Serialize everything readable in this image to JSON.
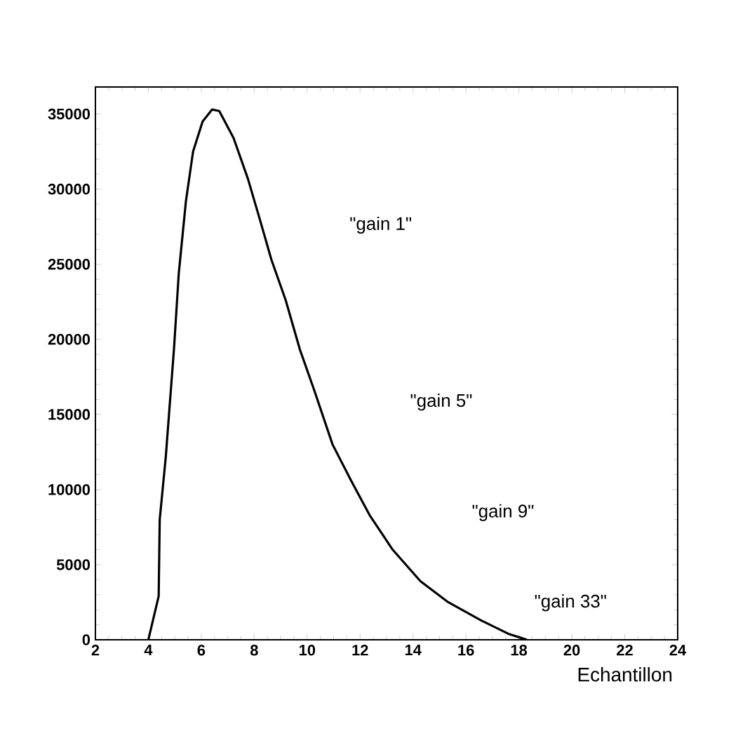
{
  "chart_data": {
    "type": "line",
    "xlabel": "Echantillon",
    "xlim": [
      2,
      24
    ],
    "xticks": [
      2,
      4,
      6,
      8,
      10,
      12,
      14,
      16,
      18,
      20,
      22,
      24
    ],
    "ylim": [
      0,
      36800
    ],
    "yticks": [
      0,
      5000,
      10000,
      15000,
      20000,
      25000,
      30000,
      35000
    ],
    "grid": false,
    "marker": "none",
    "line_style": "solid",
    "series": [
      {
        "color": "#000000",
        "x": [
          4.0,
          4.39,
          4.43,
          4.66,
          4.97,
          5.15,
          5.42,
          5.69,
          6.05,
          6.41,
          6.68,
          7.22,
          7.76,
          8.21,
          8.65,
          9.19,
          9.73,
          10.27,
          10.96,
          11.66,
          12.36,
          13.23,
          14.28,
          15.33,
          16.56,
          17.6,
          18.13,
          18.3
        ],
        "values": [
          0,
          2900,
          8000,
          12200,
          19400,
          24400,
          29200,
          32500,
          34500,
          35300,
          35200,
          33400,
          30700,
          28000,
          25300,
          22600,
          19300,
          16600,
          13000,
          10600,
          8300,
          6000,
          3900,
          2500,
          1300,
          400,
          100,
          0
        ]
      }
    ],
    "annotations": [
      "\"gain 1\"",
      "\"gain 5\"",
      "\"gain 9\"",
      "\"gain 33\""
    ]
  }
}
